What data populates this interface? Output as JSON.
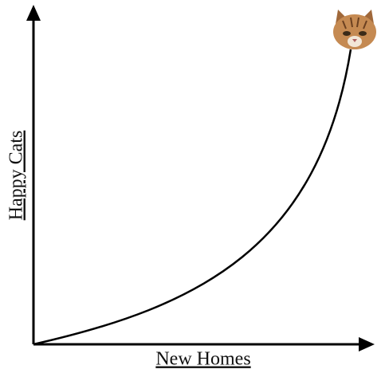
{
  "x_axis": {
    "label": "New Homes"
  },
  "y_axis": {
    "label": "Happy Cats"
  }
}
